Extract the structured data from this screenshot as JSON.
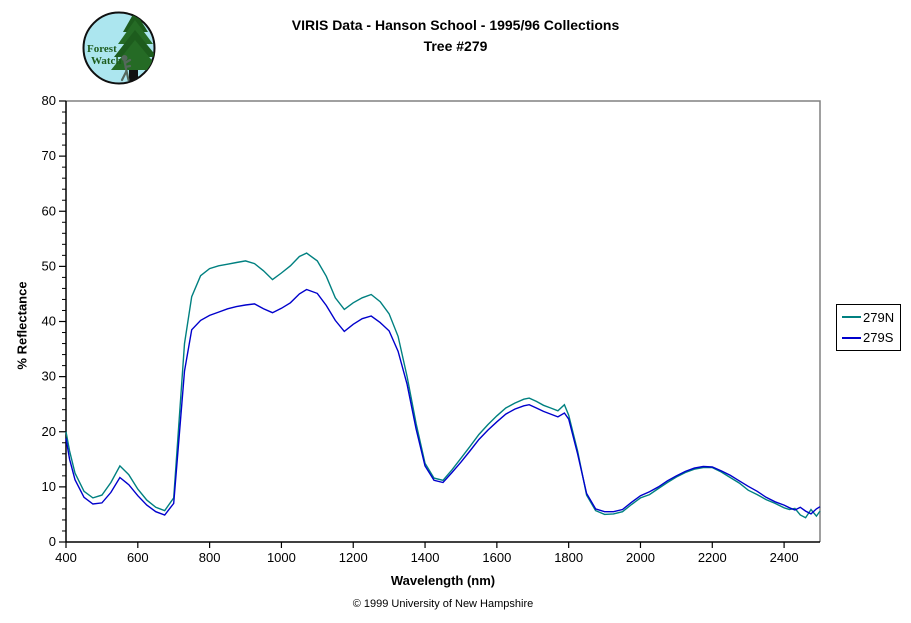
{
  "header": {
    "title_line1": "VIRIS Data - Hanson School - 1995/96 Collections",
    "title_line2": "Tree #279"
  },
  "logo": {
    "line1": "Forest",
    "line2": "Watch"
  },
  "axes": {
    "x_label": "Wavelength (nm)",
    "y_label": "% Reflectance"
  },
  "footer": {
    "copyright": "© 1999 University of New Hampshire"
  },
  "legend": {
    "items": [
      {
        "label": "279N",
        "color": "#008080"
      },
      {
        "label": "279S",
        "color": "#0000cc"
      }
    ]
  },
  "chart_data": {
    "type": "line",
    "title": "VIRIS Data - Hanson School - 1995/96 Collections — Tree #279",
    "xlabel": "Wavelength (nm)",
    "ylabel": "% Reflectance",
    "xlim": [
      400,
      2500
    ],
    "ylim": [
      0,
      80
    ],
    "x_ticks": [
      400,
      600,
      800,
      1000,
      1200,
      1400,
      1600,
      1800,
      2000,
      2200,
      2400
    ],
    "y_ticks": [
      0,
      10,
      20,
      30,
      40,
      50,
      60,
      70,
      80
    ],
    "y_minor_step": 2,
    "grid": false,
    "legend_position": "right-outside",
    "border_color": "#808080",
    "x": [
      400,
      410,
      425,
      450,
      475,
      500,
      525,
      550,
      575,
      600,
      625,
      650,
      675,
      700,
      715,
      730,
      750,
      775,
      800,
      825,
      850,
      875,
      900,
      925,
      950,
      975,
      1000,
      1025,
      1050,
      1070,
      1100,
      1125,
      1150,
      1175,
      1200,
      1225,
      1250,
      1275,
      1300,
      1325,
      1350,
      1375,
      1400,
      1425,
      1450,
      1475,
      1500,
      1525,
      1550,
      1575,
      1600,
      1625,
      1650,
      1675,
      1690,
      1710,
      1730,
      1750,
      1770,
      1788,
      1800,
      1825,
      1850,
      1875,
      1900,
      1925,
      1950,
      1975,
      2000,
      2025,
      2050,
      2075,
      2100,
      2125,
      2150,
      2175,
      2200,
      2225,
      2250,
      2275,
      2300,
      2325,
      2350,
      2375,
      2400,
      2415,
      2430,
      2445,
      2460,
      2475,
      2490,
      2500
    ],
    "series": [
      {
        "name": "279N",
        "color": "#008080",
        "values": [
          20.0,
          16.5,
          12.5,
          9.2,
          8.0,
          8.5,
          10.8,
          13.8,
          12.2,
          9.6,
          7.6,
          6.3,
          5.7,
          8.0,
          22.0,
          36.0,
          44.5,
          48.3,
          49.6,
          50.1,
          50.4,
          50.7,
          51.0,
          50.5,
          49.2,
          47.6,
          48.8,
          50.1,
          51.8,
          52.4,
          51.0,
          48.2,
          44.3,
          42.2,
          43.4,
          44.3,
          44.9,
          43.6,
          41.4,
          37.3,
          30.0,
          21.5,
          14.3,
          11.6,
          11.2,
          13.1,
          15.2,
          17.3,
          19.5,
          21.3,
          22.9,
          24.3,
          25.2,
          25.9,
          26.1,
          25.5,
          24.8,
          24.3,
          23.8,
          24.9,
          23.0,
          16.5,
          8.5,
          5.7,
          5.0,
          5.1,
          5.5,
          6.8,
          8.0,
          8.6,
          9.7,
          10.8,
          11.8,
          12.6,
          13.2,
          13.5,
          13.5,
          12.7,
          11.7,
          10.7,
          9.4,
          8.6,
          7.7,
          7.0,
          6.2,
          5.9,
          6.1,
          4.9,
          4.4,
          5.9,
          4.7,
          5.6
        ]
      },
      {
        "name": "279S",
        "color": "#0000cc",
        "values": [
          18.8,
          15.0,
          11.3,
          8.1,
          6.9,
          7.1,
          9.0,
          11.7,
          10.4,
          8.4,
          6.7,
          5.5,
          4.9,
          7.0,
          19.0,
          31.0,
          38.5,
          40.2,
          41.1,
          41.7,
          42.3,
          42.7,
          43.0,
          43.2,
          42.3,
          41.6,
          42.4,
          43.4,
          45.0,
          45.8,
          45.1,
          42.9,
          40.2,
          38.2,
          39.5,
          40.5,
          41.0,
          39.8,
          38.3,
          34.6,
          28.6,
          20.5,
          13.8,
          11.2,
          10.8,
          12.6,
          14.5,
          16.5,
          18.6,
          20.3,
          21.8,
          23.2,
          24.1,
          24.7,
          24.9,
          24.3,
          23.7,
          23.2,
          22.7,
          23.4,
          22.3,
          16.0,
          8.8,
          6.0,
          5.5,
          5.5,
          5.9,
          7.2,
          8.4,
          9.1,
          10.0,
          11.1,
          12.0,
          12.8,
          13.4,
          13.7,
          13.6,
          12.9,
          12.1,
          11.1,
          10.1,
          9.2,
          8.1,
          7.3,
          6.7,
          6.2,
          5.8,
          6.3,
          5.6,
          5.1,
          6.0,
          6.4
        ]
      }
    ]
  }
}
